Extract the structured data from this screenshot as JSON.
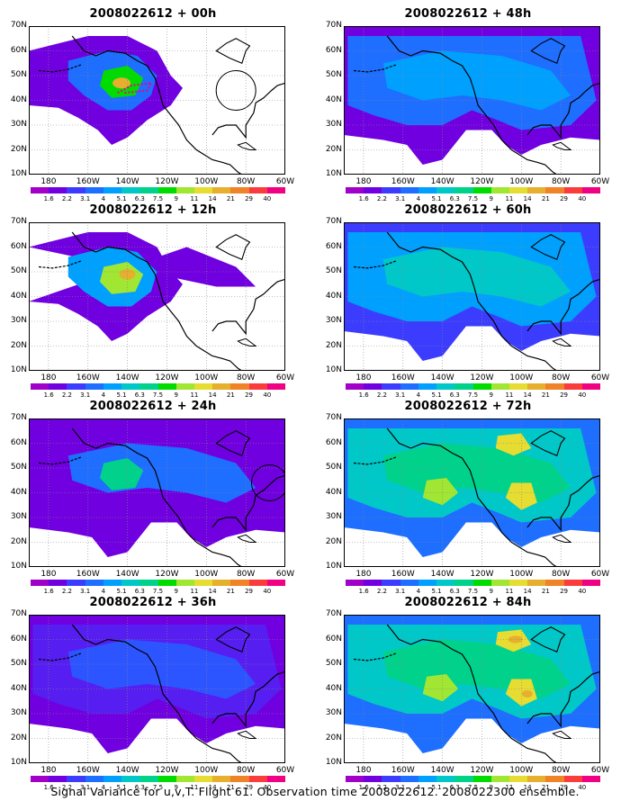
{
  "caption": "Signal Variance for u,v,T. Flight 61. Observation time 2008022612. 2008022300 ensemble.",
  "lat_labels": [
    "70N",
    "60N",
    "50N",
    "40N",
    "30N",
    "20N",
    "10N"
  ],
  "lon_labels": [
    "180",
    "160W",
    "140W",
    "120W",
    "100W",
    "80W",
    "60W"
  ],
  "colorbar": {
    "labels": [
      "1.6",
      "2.2",
      "3.1",
      "4",
      "5.1",
      "6.3",
      "7.5",
      "9",
      "11",
      "14",
      "21",
      "29",
      "40"
    ],
    "colors": [
      "#a000c8",
      "#7000e0",
      "#3c3cff",
      "#1e6eff",
      "#00a0ff",
      "#00c8c8",
      "#00d28c",
      "#00dc00",
      "#a0e632",
      "#e6dc32",
      "#e6af2d",
      "#f08228",
      "#fa3c3c",
      "#f00082"
    ]
  },
  "panels": [
    {
      "title": "2008022612 + 00h",
      "level": 0
    },
    {
      "title": "2008022612 + 48h",
      "level": 3
    },
    {
      "title": "2008022612 + 12h",
      "level": 1
    },
    {
      "title": "2008022612 + 60h",
      "level": 4
    },
    {
      "title": "2008022612 + 24h",
      "level": 2
    },
    {
      "title": "2008022612 + 72h",
      "level": 5
    },
    {
      "title": "2008022612 + 36h",
      "level": 2.5
    },
    {
      "title": "2008022612 + 84h",
      "level": 6
    }
  ]
}
